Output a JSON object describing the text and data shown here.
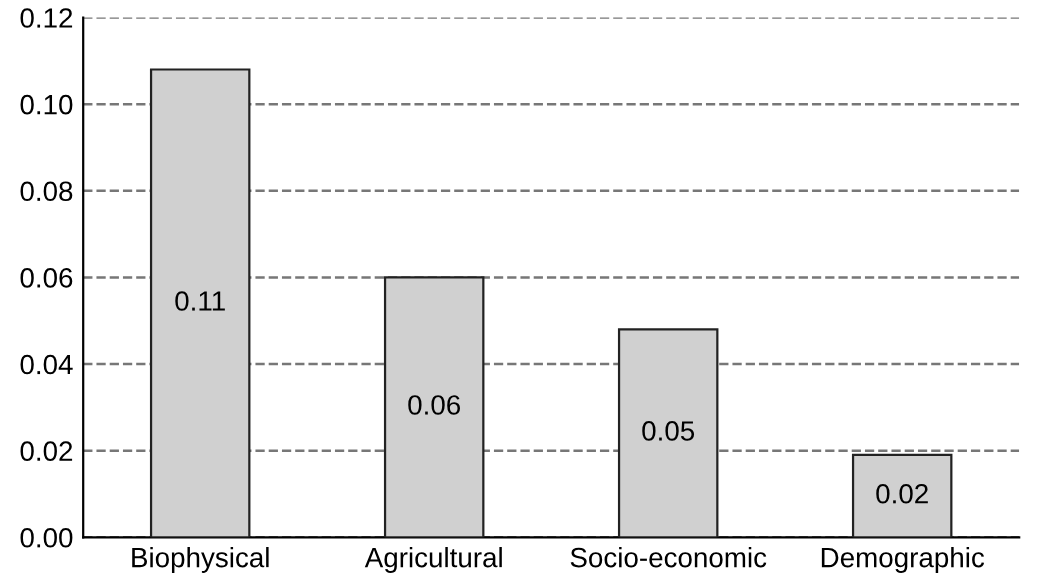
{
  "chart_data": {
    "type": "bar",
    "categories": [
      "Biophysical",
      "Agricultural",
      "Socio-economic",
      "Demographic"
    ],
    "values": [
      0.108,
      0.06,
      0.048,
      0.019
    ],
    "value_labels": [
      "0.11",
      "0.06",
      "0.05",
      "0.02"
    ],
    "color": "#d0d0d0",
    "ylim": [
      0,
      0.12
    ],
    "yticks": [
      {
        "value": 0,
        "label": "0.00"
      },
      {
        "value": 0.02,
        "label": "0.02"
      },
      {
        "value": 0.04,
        "label": "0.04"
      },
      {
        "value": 0.06,
        "label": "0.06"
      },
      {
        "value": 0.08,
        "label": "0.08"
      },
      {
        "value": 0.1,
        "label": "0.10"
      },
      {
        "value": 0.12,
        "label": "0.12"
      }
    ],
    "grid": "y",
    "line_style": "dashed",
    "legend": false
  }
}
